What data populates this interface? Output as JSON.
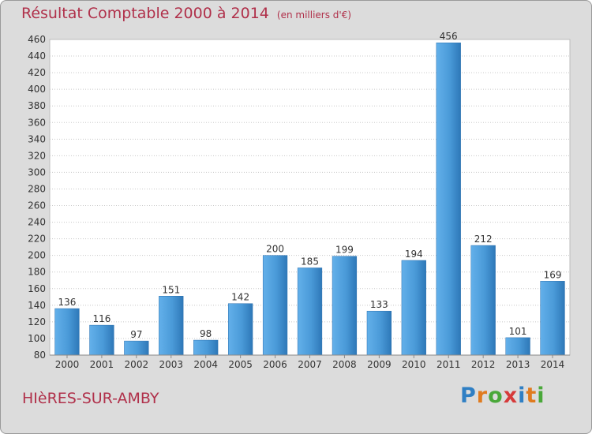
{
  "chart_data": {
    "type": "bar",
    "title": "Résultat Comptable 2000 à 2014",
    "subtitle": "(en milliers d'€)",
    "categories": [
      "2000",
      "2001",
      "2002",
      "2003",
      "2004",
      "2005",
      "2006",
      "2007",
      "2008",
      "2009",
      "2010",
      "2011",
      "2012",
      "2013",
      "2014"
    ],
    "values": [
      136,
      116,
      97,
      151,
      98,
      142,
      200,
      185,
      199,
      133,
      194,
      456,
      212,
      101,
      169
    ],
    "ylim": [
      80,
      460
    ],
    "ytick_step": 20,
    "grid": true,
    "bar_color": "#4a9ad8"
  },
  "footer": {
    "town": "HIèRES-SUR-AMBY",
    "logo": "Proxiti"
  }
}
